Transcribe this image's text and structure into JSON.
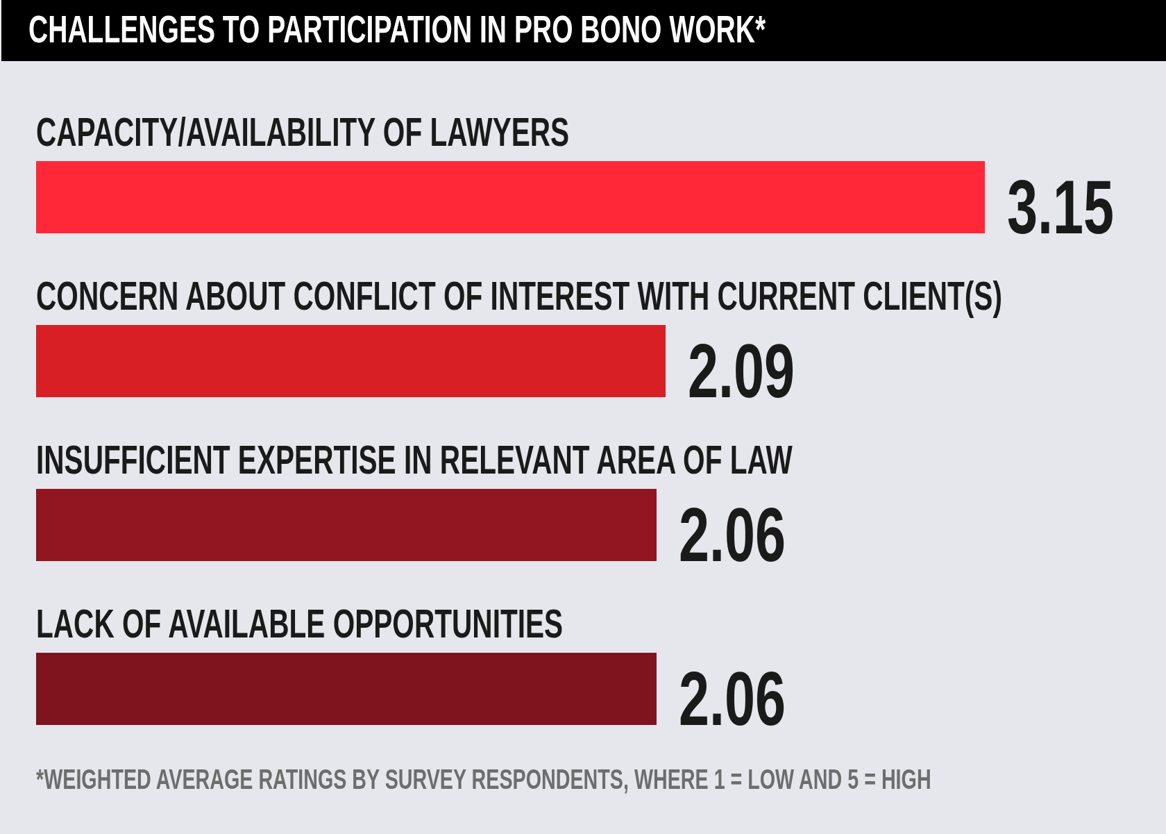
{
  "chart_data": {
    "type": "bar",
    "orientation": "horizontal",
    "title": "CHALLENGES TO PARTICIPATION IN PRO BONO WORK*",
    "categories": [
      "CAPACITY/AVAILABILITY OF LAWYERS",
      "CONCERN ABOUT CONFLICT OF INTEREST WITH CURRENT CLIENT(S)",
      "INSUFFICIENT EXPERTISE IN RELEVANT AREA OF LAW",
      "LACK OF AVAILABLE OPPORTUNITIES"
    ],
    "values": [
      3.15,
      2.09,
      2.06,
      2.06
    ],
    "colors": [
      "#ff2838",
      "#d91f26",
      "#911621",
      "#7f131e"
    ],
    "data_labels": true,
    "tick_labels": "y",
    "annotations": [
      "*WEIGHTED AVERAGE RATINGS BY SURVEY RESPONDENTS, WHERE 1 = LOW AND 5 = HIGH"
    ]
  }
}
